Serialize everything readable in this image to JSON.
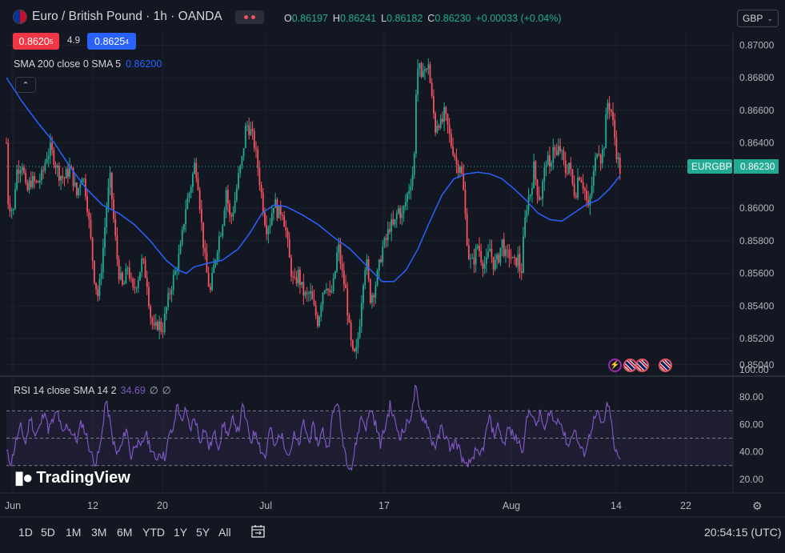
{
  "header": {
    "symbol_title": "Euro / British Pound · 1h · OANDA",
    "ohlc": [
      {
        "key": "O",
        "value": "0.86197"
      },
      {
        "key": "H",
        "value": "0.86241"
      },
      {
        "key": "L",
        "value": "0.86182"
      },
      {
        "key": "C",
        "value": "0.86230"
      }
    ],
    "change": "+0.00033 (+0.04%)",
    "currency": "GBP",
    "sell_price": "0.8620",
    "sell_pip": "5",
    "spread": "4.9",
    "buy_price": "0.8625",
    "buy_pip": "4"
  },
  "indicators": {
    "sma_label": "SMA 200 close 0 SMA 5",
    "sma_value": "0.86200",
    "rsi_label": "RSI 14 close SMA 14 2",
    "rsi_value": "34.69"
  },
  "brand": "TradingView",
  "last_price_tag": {
    "symbol": "EURGBP",
    "price": "0.86230"
  },
  "timeframes": [
    "1D",
    "5D",
    "1M",
    "3M",
    "6M",
    "YTD",
    "1Y",
    "5Y",
    "All"
  ],
  "clock": "20:54:15 (UTC)",
  "icons": [
    "calendar-range-icon",
    "settings-icon",
    "chevron-up-icon",
    "chevron-down-icon",
    "flash-event-icon",
    "uk-flag-icon",
    "eu-gb-flag-icon"
  ],
  "colors": {
    "background": "#131722",
    "up": "#22ab94",
    "down": "#f7525f",
    "sma": "#2962ff",
    "rsi": "#7e57c2",
    "last_price": "#22ab94"
  },
  "chart_data": [
    {
      "type": "candlestick",
      "title": "Euro / British Pound · 1h · OANDA",
      "x_tick_labels": [
        "Jun",
        "12",
        "20",
        "Jul",
        "17",
        "Aug",
        "14",
        "22"
      ],
      "y_tick_labels": [
        "0.87000",
        "0.86800",
        "0.86600",
        "0.86400",
        "0.86230",
        "0.86000",
        "0.85800",
        "0.85600",
        "0.85400",
        "0.85200",
        "0.85040"
      ],
      "ylim": [
        0.8498,
        0.8708
      ],
      "close_path": [
        [
          0,
          0.864
        ],
        [
          2,
          0.8605
        ],
        [
          6,
          0.86
        ],
        [
          9,
          0.8598
        ],
        [
          12,
          0.8622
        ],
        [
          15,
          0.8625
        ],
        [
          20,
          0.8628
        ],
        [
          25,
          0.8608
        ],
        [
          30,
          0.8617
        ],
        [
          38,
          0.8615
        ],
        [
          45,
          0.862
        ],
        [
          50,
          0.8632
        ],
        [
          55,
          0.8636
        ],
        [
          60,
          0.863
        ],
        [
          65,
          0.8622
        ],
        [
          72,
          0.8618
        ],
        [
          80,
          0.8625
        ],
        [
          88,
          0.8608
        ],
        [
          95,
          0.8622
        ],
        [
          100,
          0.8608
        ],
        [
          105,
          0.8583
        ],
        [
          110,
          0.8558
        ],
        [
          115,
          0.8545
        ],
        [
          120,
          0.857
        ],
        [
          126,
          0.8605
        ],
        [
          130,
          0.8618
        ],
        [
          135,
          0.8588
        ],
        [
          140,
          0.8562
        ],
        [
          146,
          0.855
        ],
        [
          152,
          0.8565
        ],
        [
          158,
          0.8548
        ],
        [
          165,
          0.8558
        ],
        [
          170,
          0.8568
        ],
        [
          176,
          0.8555
        ],
        [
          180,
          0.8535
        ],
        [
          185,
          0.8524
        ],
        [
          190,
          0.853
        ],
        [
          195,
          0.8525
        ],
        [
          200,
          0.8538
        ],
        [
          206,
          0.8552
        ],
        [
          212,
          0.8562
        ],
        [
          218,
          0.8575
        ],
        [
          224,
          0.86
        ],
        [
          230,
          0.8612
        ],
        [
          236,
          0.8628
        ],
        [
          240,
          0.8615
        ],
        [
          245,
          0.8585
        ],
        [
          250,
          0.8562
        ],
        [
          255,
          0.8548
        ],
        [
          260,
          0.8565
        ],
        [
          265,
          0.858
        ],
        [
          270,
          0.859
        ],
        [
          275,
          0.8612
        ],
        [
          280,
          0.8592
        ],
        [
          285,
          0.8602
        ],
        [
          290,
          0.8618
        ],
        [
          295,
          0.863
        ],
        [
          300,
          0.8652
        ],
        [
          305,
          0.8648
        ],
        [
          310,
          0.864
        ],
        [
          315,
          0.8624
        ],
        [
          320,
          0.8605
        ],
        [
          325,
          0.8588
        ],
        [
          330,
          0.8592
        ],
        [
          335,
          0.8605
        ],
        [
          340,
          0.8596
        ],
        [
          345,
          0.86
        ],
        [
          350,
          0.8585
        ],
        [
          355,
          0.8565
        ],
        [
          360,
          0.8552
        ],
        [
          365,
          0.856
        ],
        [
          370,
          0.855
        ],
        [
          375,
          0.8545
        ],
        [
          380,
          0.8548
        ],
        [
          385,
          0.8538
        ],
        [
          390,
          0.853
        ],
        [
          395,
          0.8548
        ],
        [
          400,
          0.8555
        ],
        [
          405,
          0.8545
        ],
        [
          410,
          0.8555
        ],
        [
          415,
          0.8578
        ],
        [
          420,
          0.856
        ],
        [
          425,
          0.8548
        ],
        [
          430,
          0.852
        ],
        [
          434,
          0.8508
        ],
        [
          438,
          0.8512
        ],
        [
          442,
          0.853
        ],
        [
          446,
          0.8555
        ],
        [
          450,
          0.857
        ],
        [
          455,
          0.8545
        ],
        [
          460,
          0.855
        ],
        [
          465,
          0.856
        ],
        [
          470,
          0.8575
        ],
        [
          475,
          0.858
        ],
        [
          480,
          0.859
        ],
        [
          485,
          0.8588
        ],
        [
          490,
          0.86
        ],
        [
          495,
          0.8595
        ],
        [
          500,
          0.8605
        ],
        [
          505,
          0.8615
        ],
        [
          510,
          0.8625
        ],
        [
          513,
          0.868
        ],
        [
          516,
          0.869
        ],
        [
          519,
          0.8675
        ],
        [
          522,
          0.8692
        ],
        [
          525,
          0.868
        ],
        [
          528,
          0.869
        ],
        [
          531,
          0.8672
        ],
        [
          534,
          0.866
        ],
        [
          537,
          0.8648
        ],
        [
          540,
          0.8655
        ],
        [
          544,
          0.865
        ],
        [
          548,
          0.8658
        ],
        [
          552,
          0.865
        ],
        [
          556,
          0.864
        ],
        [
          560,
          0.8635
        ],
        [
          564,
          0.8625
        ],
        [
          568,
          0.8628
        ],
        [
          572,
          0.861
        ],
        [
          575,
          0.859
        ],
        [
          578,
          0.8572
        ],
        [
          582,
          0.8565
        ],
        [
          586,
          0.857
        ],
        [
          590,
          0.8578
        ],
        [
          595,
          0.8568
        ],
        [
          600,
          0.8565
        ],
        [
          605,
          0.8575
        ],
        [
          610,
          0.8565
        ],
        [
          615,
          0.8568
        ],
        [
          620,
          0.858
        ],
        [
          625,
          0.857
        ],
        [
          630,
          0.8572
        ],
        [
          635,
          0.8565
        ],
        [
          640,
          0.857
        ],
        [
          644,
          0.8558
        ],
        [
          648,
          0.8588
        ],
        [
          652,
          0.8605
        ],
        [
          656,
          0.861
        ],
        [
          660,
          0.8625
        ],
        [
          664,
          0.8612
        ],
        [
          668,
          0.8605
        ],
        [
          672,
          0.8618
        ],
        [
          676,
          0.8632
        ],
        [
          680,
          0.8622
        ],
        [
          684,
          0.864
        ],
        [
          688,
          0.863
        ],
        [
          692,
          0.8638
        ],
        [
          696,
          0.863
        ],
        [
          700,
          0.8622
        ],
        [
          704,
          0.8628
        ],
        [
          708,
          0.8615
        ],
        [
          712,
          0.8608
        ],
        [
          716,
          0.8622
        ],
        [
          720,
          0.8618
        ],
        [
          724,
          0.861
        ],
        [
          728,
          0.8598
        ],
        [
          732,
          0.8612
        ],
        [
          736,
          0.8625
        ],
        [
          740,
          0.864
        ],
        [
          744,
          0.863
        ],
        [
          748,
          0.864
        ],
        [
          752,
          0.8665
        ],
        [
          756,
          0.8662
        ],
        [
          760,
          0.8648
        ],
        [
          764,
          0.8632
        ],
        [
          768,
          0.8623
        ]
      ],
      "sma_path": [
        [
          0,
          0.868
        ],
        [
          20,
          0.8665
        ],
        [
          40,
          0.8652
        ],
        [
          60,
          0.864
        ],
        [
          80,
          0.8625
        ],
        [
          100,
          0.8612
        ],
        [
          120,
          0.8602
        ],
        [
          140,
          0.8597
        ],
        [
          160,
          0.859
        ],
        [
          180,
          0.858
        ],
        [
          200,
          0.8568
        ],
        [
          215,
          0.8562
        ],
        [
          225,
          0.856
        ],
        [
          235,
          0.8564
        ],
        [
          250,
          0.8566
        ],
        [
          270,
          0.8568
        ],
        [
          290,
          0.8575
        ],
        [
          305,
          0.8585
        ],
        [
          320,
          0.8597
        ],
        [
          335,
          0.8602
        ],
        [
          350,
          0.8601
        ],
        [
          370,
          0.8596
        ],
        [
          390,
          0.859
        ],
        [
          410,
          0.8582
        ],
        [
          430,
          0.8575
        ],
        [
          450,
          0.8565
        ],
        [
          470,
          0.8555
        ],
        [
          485,
          0.8555
        ],
        [
          500,
          0.8562
        ],
        [
          515,
          0.8575
        ],
        [
          530,
          0.8592
        ],
        [
          545,
          0.8608
        ],
        [
          560,
          0.8618
        ],
        [
          575,
          0.8621
        ],
        [
          590,
          0.8622
        ],
        [
          605,
          0.8621
        ],
        [
          620,
          0.8618
        ],
        [
          635,
          0.8612
        ],
        [
          650,
          0.8605
        ],
        [
          665,
          0.8597
        ],
        [
          680,
          0.8593
        ],
        [
          695,
          0.8592
        ],
        [
          710,
          0.8597
        ],
        [
          725,
          0.8602
        ],
        [
          740,
          0.8605
        ],
        [
          755,
          0.8612
        ],
        [
          768,
          0.862
        ]
      ]
    },
    {
      "type": "line",
      "title": "RSI 14 close SMA 14 2",
      "y_tick_labels": [
        "100.00",
        "80.00",
        "60.00",
        "40.00",
        "20.00"
      ],
      "ylim": [
        10,
        100
      ],
      "bands": [
        30,
        50,
        70
      ],
      "path": [
        [
          0,
          40
        ],
        [
          6,
          32
        ],
        [
          12,
          48
        ],
        [
          18,
          58
        ],
        [
          24,
          46
        ],
        [
          30,
          66
        ],
        [
          36,
          52
        ],
        [
          42,
          58
        ],
        [
          48,
          72
        ],
        [
          52,
          56
        ],
        [
          58,
          62
        ],
        [
          64,
          70
        ],
        [
          70,
          52
        ],
        [
          76,
          60
        ],
        [
          82,
          54
        ],
        [
          88,
          48
        ],
        [
          94,
          62
        ],
        [
          100,
          52
        ],
        [
          106,
          38
        ],
        [
          112,
          32
        ],
        [
          118,
          45
        ],
        [
          124,
          78
        ],
        [
          128,
          68
        ],
        [
          132,
          52
        ],
        [
          138,
          38
        ],
        [
          144,
          44
        ],
        [
          150,
          58
        ],
        [
          156,
          36
        ],
        [
          162,
          48
        ],
        [
          168,
          42
        ],
        [
          174,
          54
        ],
        [
          180,
          44
        ],
        [
          186,
          34
        ],
        [
          192,
          40
        ],
        [
          198,
          36
        ],
        [
          204,
          52
        ],
        [
          210,
          58
        ],
        [
          214,
          78
        ],
        [
          218,
          62
        ],
        [
          224,
          70
        ],
        [
          230,
          56
        ],
        [
          236,
          66
        ],
        [
          242,
          48
        ],
        [
          248,
          58
        ],
        [
          254,
          42
        ],
        [
          260,
          54
        ],
        [
          266,
          44
        ],
        [
          272,
          62
        ],
        [
          278,
          50
        ],
        [
          284,
          66
        ],
        [
          290,
          54
        ],
        [
          296,
          74
        ],
        [
          300,
          62
        ],
        [
          306,
          48
        ],
        [
          312,
          56
        ],
        [
          318,
          42
        ],
        [
          324,
          36
        ],
        [
          330,
          58
        ],
        [
          336,
          42
        ],
        [
          342,
          54
        ],
        [
          348,
          46
        ],
        [
          354,
          38
        ],
        [
          360,
          52
        ],
        [
          366,
          44
        ],
        [
          372,
          62
        ],
        [
          378,
          48
        ],
        [
          384,
          58
        ],
        [
          390,
          46
        ],
        [
          396,
          56
        ],
        [
          402,
          42
        ],
        [
          408,
          66
        ],
        [
          414,
          78
        ],
        [
          420,
          52
        ],
        [
          426,
          34
        ],
        [
          432,
          28
        ],
        [
          438,
          48
        ],
        [
          444,
          66
        ],
        [
          450,
          58
        ],
        [
          456,
          72
        ],
        [
          462,
          60
        ],
        [
          468,
          46
        ],
        [
          474,
          58
        ],
        [
          480,
          74
        ],
        [
          486,
          62
        ],
        [
          492,
          52
        ],
        [
          498,
          56
        ],
        [
          504,
          64
        ],
        [
          508,
          70
        ],
        [
          512,
          88
        ],
        [
          516,
          72
        ],
        [
          520,
          66
        ],
        [
          526,
          62
        ],
        [
          532,
          48
        ],
        [
          538,
          44
        ],
        [
          544,
          58
        ],
        [
          550,
          50
        ],
        [
          556,
          42
        ],
        [
          562,
          48
        ],
        [
          568,
          40
        ],
        [
          574,
          28
        ],
        [
          580,
          32
        ],
        [
          586,
          40
        ],
        [
          592,
          36
        ],
        [
          598,
          46
        ],
        [
          604,
          66
        ],
        [
          610,
          52
        ],
        [
          616,
          60
        ],
        [
          622,
          44
        ],
        [
          628,
          58
        ],
        [
          634,
          52
        ],
        [
          640,
          48
        ],
        [
          646,
          42
        ],
        [
          652,
          66
        ],
        [
          656,
          72
        ],
        [
          662,
          58
        ],
        [
          668,
          68
        ],
        [
          674,
          54
        ],
        [
          680,
          72
        ],
        [
          686,
          60
        ],
        [
          692,
          66
        ],
        [
          698,
          52
        ],
        [
          704,
          44
        ],
        [
          710,
          58
        ],
        [
          716,
          46
        ],
        [
          722,
          38
        ],
        [
          728,
          48
        ],
        [
          734,
          62
        ],
        [
          740,
          68
        ],
        [
          746,
          58
        ],
        [
          752,
          74
        ],
        [
          756,
          68
        ],
        [
          760,
          44
        ],
        [
          764,
          38
        ],
        [
          768,
          34.69
        ]
      ]
    }
  ]
}
